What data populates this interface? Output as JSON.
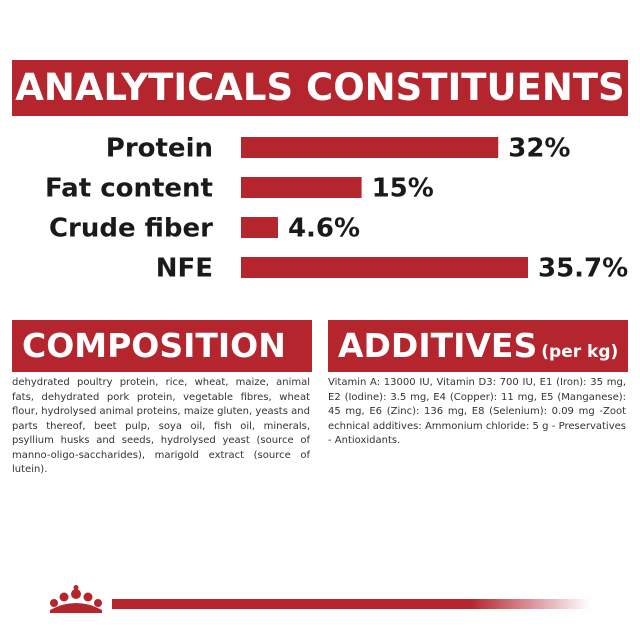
{
  "headers": {
    "analytics": "ANALYTICALS CONSTITUENTS",
    "composition": "COMPOSITION",
    "additives": "ADDITIVES",
    "additives_unit": "(per kg)"
  },
  "chart_data": {
    "type": "bar",
    "orientation": "horizontal",
    "categories": [
      "Protein",
      "Fat content",
      "Crude fiber",
      "NFE"
    ],
    "values": [
      32,
      15,
      4.6,
      35.7
    ],
    "value_labels": [
      "32%",
      "15%",
      "4.6%",
      "35.7%"
    ],
    "xlim": [
      0,
      35.7
    ],
    "grid": false,
    "bar_color": "#b4252e"
  },
  "composition_text": "dehydrated poultry protein, rice, wheat, maize, animal fats, dehydrated pork protein, vegetable fibres, wheat flour, hydrolysed animal proteins, maize gluten, yeasts and parts thereof, beet pulp, soya oil, fish oil, minerals, psyllium husks and seeds, hydrolysed yeast (source of manno-oligo-saccharides), marigold extract (source of lutein).",
  "additives_text": "Vitamin A: 13000 IU, Vitamin D3: 700 IU, E1 (Iron): 35 mg, E2 (Iodine): 3.5 mg, E4 (Copper): 11 mg, E5 (Manganese): 45 mg, E6 (Zinc): 136 mg, E8 (Selenium): 0.09 mg -Zoot echnical additives: Ammonium chloride: 5 g - Preservatives - Antioxidants.",
  "colors": {
    "brand_red": "#b4252e",
    "text_dark": "#1a1a1a"
  },
  "logo": {
    "icon": "royal-canin-crown-icon"
  }
}
